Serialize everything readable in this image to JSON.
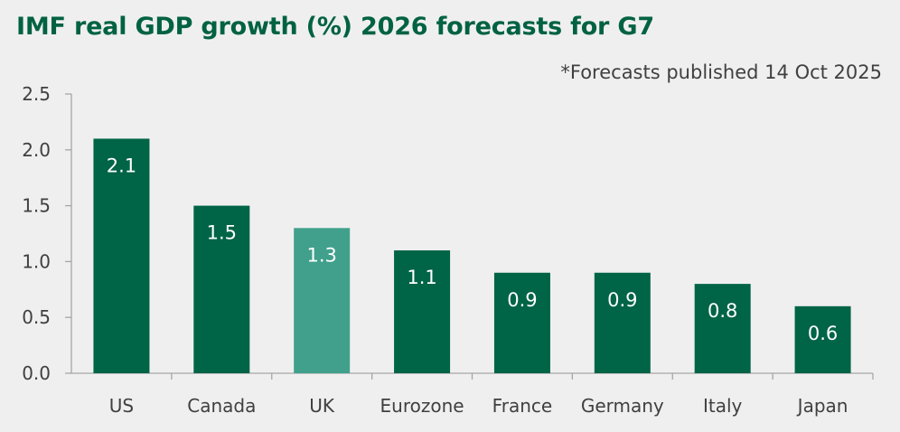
{
  "title": "IMF real GDP growth (%) 2026 forecasts for G7",
  "note": "*Forecasts  published 14 Oct 2025",
  "colors": {
    "bar": "#006446",
    "highlight": "#41a08c",
    "axis": "#a6a6a6",
    "text": "#404040",
    "title": "#006242"
  },
  "chart_data": {
    "type": "bar",
    "title": "IMF real GDP growth (%) 2026 forecasts for G7",
    "xlabel": "",
    "ylabel": "",
    "categories": [
      "US",
      "Canada",
      "UK",
      "Eurozone",
      "France",
      "Germany",
      "Italy",
      "Japan"
    ],
    "values": [
      2.1,
      1.5,
      1.3,
      1.1,
      0.9,
      0.9,
      0.8,
      0.6
    ],
    "data_labels": [
      "2.1",
      "1.5",
      "1.3",
      "1.1",
      "0.9",
      "0.9",
      "0.8",
      "0.6"
    ],
    "highlight_category": "UK",
    "ylim": [
      0,
      2.5
    ],
    "yticks": [
      "0.0",
      "0.5",
      "1.0",
      "1.5",
      "2.0",
      "2.5"
    ],
    "grid": false,
    "legend": "none"
  }
}
